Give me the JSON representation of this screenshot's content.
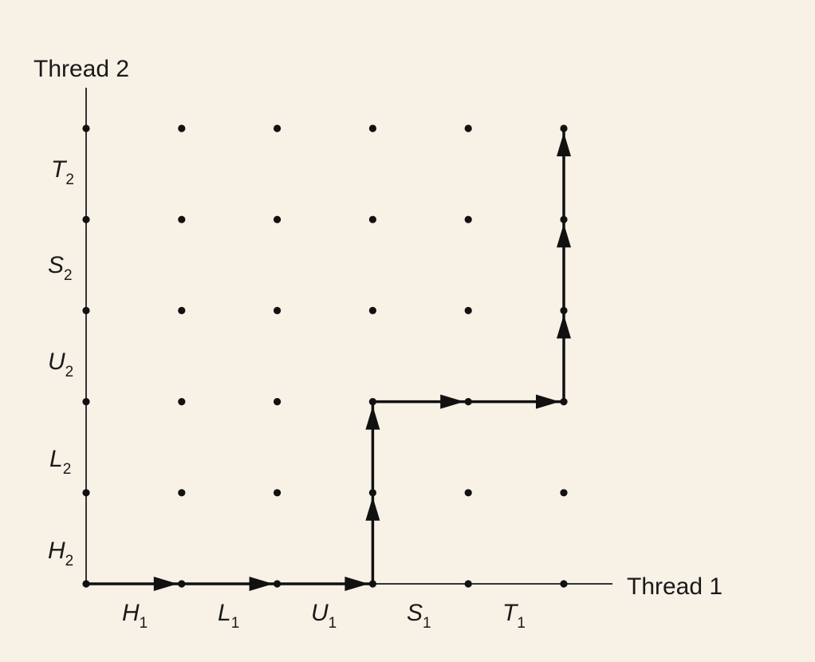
{
  "x_axis": {
    "title": "Thread 1",
    "segments": [
      {
        "letter": "H",
        "sub": "1"
      },
      {
        "letter": "L",
        "sub": "1"
      },
      {
        "letter": "U",
        "sub": "1"
      },
      {
        "letter": "S",
        "sub": "1"
      },
      {
        "letter": "T",
        "sub": "1"
      }
    ]
  },
  "y_axis": {
    "title": "Thread 2",
    "segments": [
      {
        "letter": "H",
        "sub": "2"
      },
      {
        "letter": "L",
        "sub": "2"
      },
      {
        "letter": "U",
        "sub": "2"
      },
      {
        "letter": "S",
        "sub": "2"
      },
      {
        "letter": "T",
        "sub": "2"
      }
    ]
  },
  "grid": {
    "columns": 6,
    "rows": 6
  },
  "trajectory": [
    [
      0,
      0
    ],
    [
      1,
      0
    ],
    [
      2,
      0
    ],
    [
      3,
      0
    ],
    [
      3,
      1
    ],
    [
      3,
      2
    ],
    [
      4,
      2
    ],
    [
      5,
      2
    ],
    [
      5,
      3
    ],
    [
      5,
      4
    ],
    [
      5,
      5
    ]
  ],
  "colors": {
    "background": "#f7f1e6",
    "ink": "#111111",
    "axis": "#333333"
  }
}
